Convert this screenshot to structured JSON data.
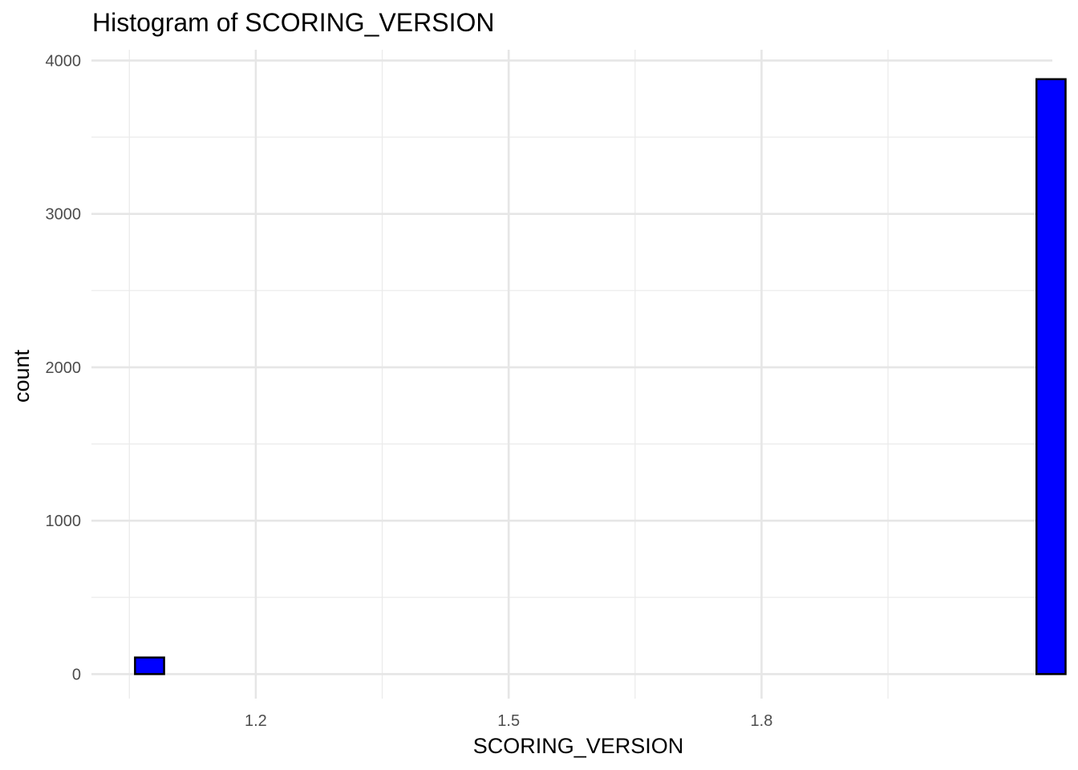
{
  "chart_data": {
    "type": "bar",
    "subtype": "histogram",
    "title": "Histogram of SCORING_VERSION",
    "xlabel": "SCORING_VERSION",
    "ylabel": "count",
    "xlim": [
      1.005,
      2.145
    ],
    "ylim": [
      -160,
      4070
    ],
    "x_ticks": [
      1.2,
      1.5,
      1.8
    ],
    "x_tick_labels": [
      "1.2",
      "1.5",
      "1.8"
    ],
    "x_minor_ticks": [
      1.05,
      1.35,
      1.65,
      1.95
    ],
    "y_ticks": [
      0,
      1000,
      2000,
      3000,
      4000
    ],
    "y_tick_labels": [
      "0",
      "1000",
      "2000",
      "3000",
      "4000"
    ],
    "y_minor_ticks": [
      500,
      1500,
      2500,
      3500
    ],
    "bin_start": 1.0567,
    "bin_width": 0.0345,
    "counts": [
      108,
      0,
      0,
      0,
      0,
      0,
      0,
      0,
      0,
      0,
      0,
      0,
      0,
      0,
      0,
      0,
      0,
      0,
      0,
      0,
      0,
      0,
      0,
      0,
      0,
      0,
      0,
      0,
      0,
      0,
      0,
      3878
    ],
    "fill_color": "#0000FF",
    "edge_color": "#000000",
    "grid": true,
    "legend": "none"
  }
}
